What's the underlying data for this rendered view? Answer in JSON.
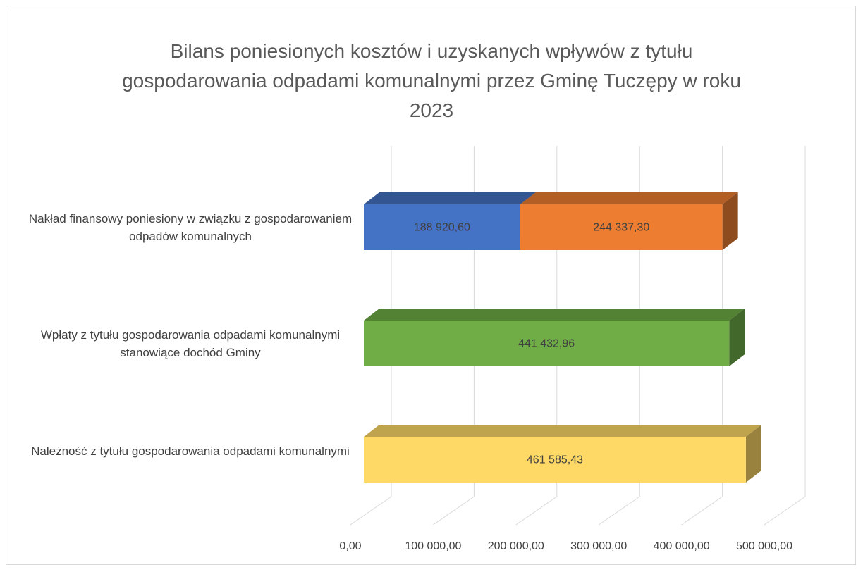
{
  "chart_data": {
    "type": "bar3d_stacked_horizontal",
    "title": "Bilans poniesionych kosztów i uzyskanych wpływów z tytułu gospodarowania odpadami komunalnymi przez Gminę Tuczępy w roku 2023",
    "categories": [
      "Nakład finansowy poniesiony w związku z gospodarowaniem odpadów komunalnych",
      "Wpłaty z tytułu gospodarowania odpadami komunalnymi stanowiące dochód Gminy",
      "Należność z tytułu gospodarowania odpadami komunalnymi"
    ],
    "series": [
      {
        "color": "#4472c4",
        "values": [
          188920.6,
          null,
          null
        ],
        "value_labels": [
          "188 920,60",
          null,
          null
        ]
      },
      {
        "color": "#ed7d31",
        "values": [
          244337.3,
          null,
          null
        ],
        "value_labels": [
          "244 337,30",
          null,
          null
        ]
      },
      {
        "color": "#70ad47",
        "values": [
          null,
          441432.96,
          null
        ],
        "value_labels": [
          null,
          "441 432,96",
          null
        ]
      },
      {
        "color": "#ffd966",
        "values": [
          null,
          null,
          461585.43
        ],
        "value_labels": [
          null,
          null,
          "461 585,43"
        ]
      }
    ],
    "xlim": [
      0,
      500000
    ],
    "xticks": [
      {
        "value": 0,
        "label": "0,00"
      },
      {
        "value": 100000,
        "label": "100 000,00"
      },
      {
        "value": 200000,
        "label": "200 000,00"
      },
      {
        "value": 300000,
        "label": "300 000,00"
      },
      {
        "value": 400000,
        "label": "400 000,00"
      },
      {
        "value": 500000,
        "label": "500 000,00"
      }
    ],
    "grid": true
  }
}
